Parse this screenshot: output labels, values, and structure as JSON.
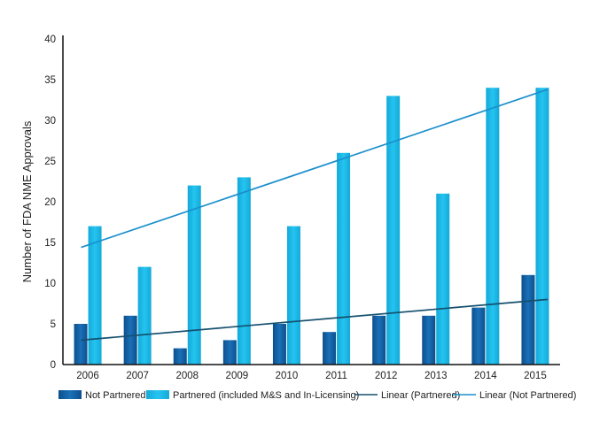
{
  "chart_data": {
    "type": "bar",
    "ylabel": "Number of FDA NME Approvals",
    "xlabel": "",
    "categories": [
      "2006",
      "2007",
      "2008",
      "2009",
      "2010",
      "2011",
      "2012",
      "2013",
      "2014",
      "2015"
    ],
    "ylim": [
      0,
      40
    ],
    "yticks": [
      "0",
      "5",
      "10",
      "15",
      "20",
      "25",
      "30",
      "35",
      "40"
    ],
    "grid": false,
    "legend_position": "bottom",
    "series": [
      {
        "name": "Not Partnered",
        "values": [
          5,
          6,
          2,
          3,
          5,
          4,
          6,
          6,
          7,
          11
        ],
        "color": "#1565a8"
      },
      {
        "name": "Partnered (included M&S and In-Licensing)",
        "values": [
          17,
          12,
          22,
          23,
          17,
          26,
          33,
          21,
          34,
          34
        ],
        "color": "#1ab8e6"
      }
    ],
    "trendlines": [
      {
        "name": "Linear (Partnered)",
        "type": "linear",
        "from": 3,
        "to": 8,
        "color": "#15506e"
      },
      {
        "name": "Linear (Not Partnered)",
        "type": "linear",
        "from": 14.4,
        "to": 33.8,
        "color": "#1a8fcc"
      }
    ]
  }
}
